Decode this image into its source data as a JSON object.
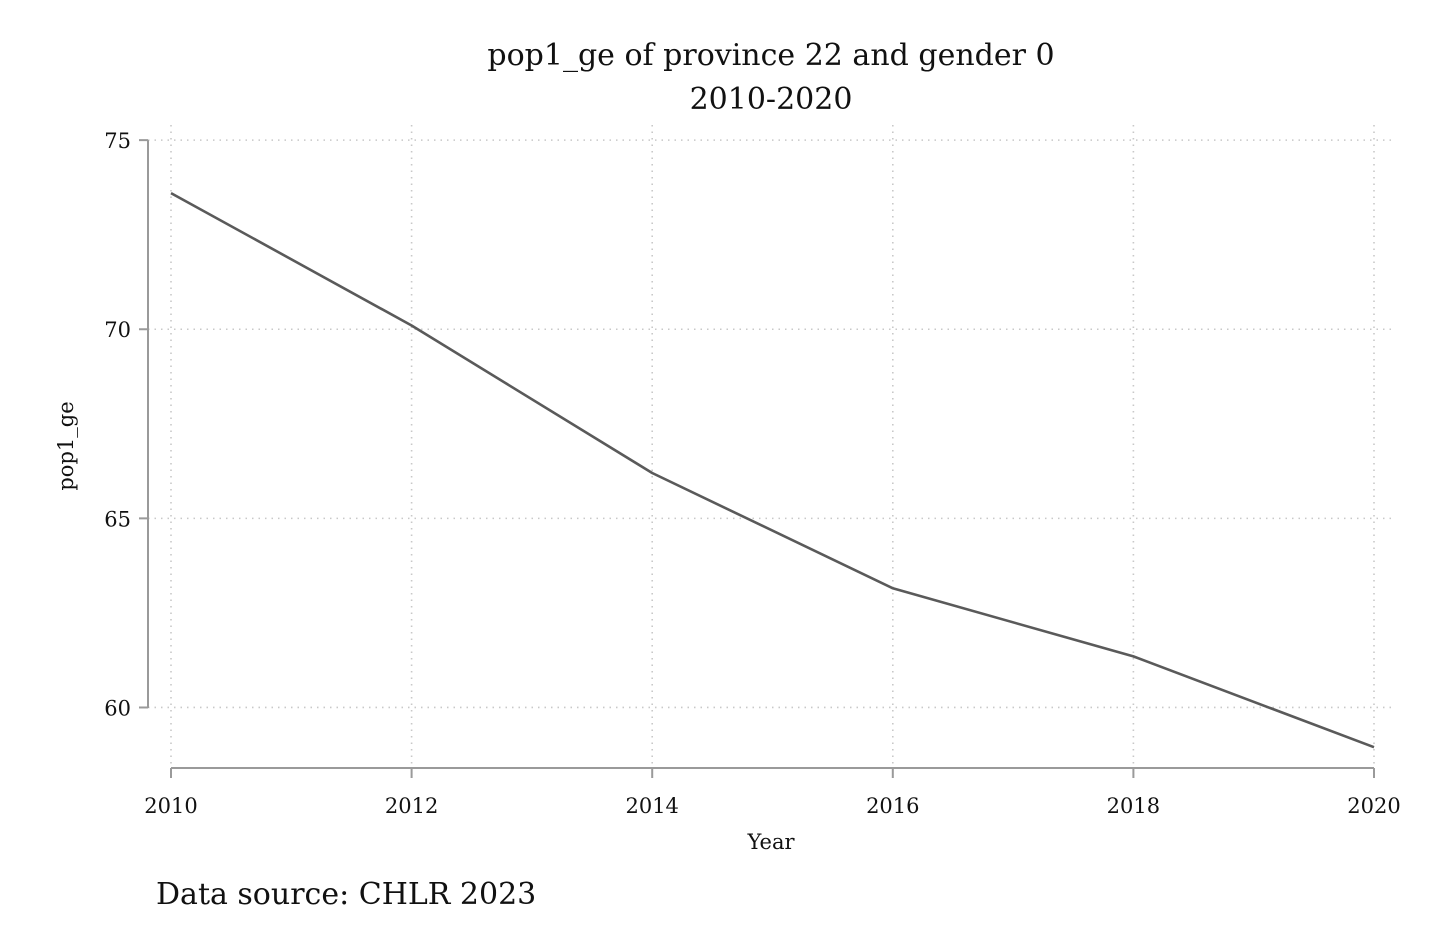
{
  "chart_data": {
    "type": "line",
    "title": "pop1_ge of province 22 and gender 0",
    "subtitle": "2010-2020",
    "xlabel": "Year",
    "ylabel": "pop1_ge",
    "note": "Data source: CHLR 2023",
    "x": [
      2010,
      2012,
      2014,
      2016,
      2018,
      2020
    ],
    "series": [
      {
        "values": [
          73.6,
          70.1,
          66.2,
          63.15,
          61.35,
          58.95
        ]
      }
    ],
    "xticks": [
      "2010",
      "2012",
      "2014",
      "2016",
      "2018",
      "2020"
    ],
    "yticks": [
      "60",
      "65",
      "70",
      "75"
    ],
    "xlim": [
      2010,
      2020
    ],
    "ylim": [
      58.4,
      75.4
    ],
    "grid": true,
    "line_color": "#5a5a5a"
  }
}
